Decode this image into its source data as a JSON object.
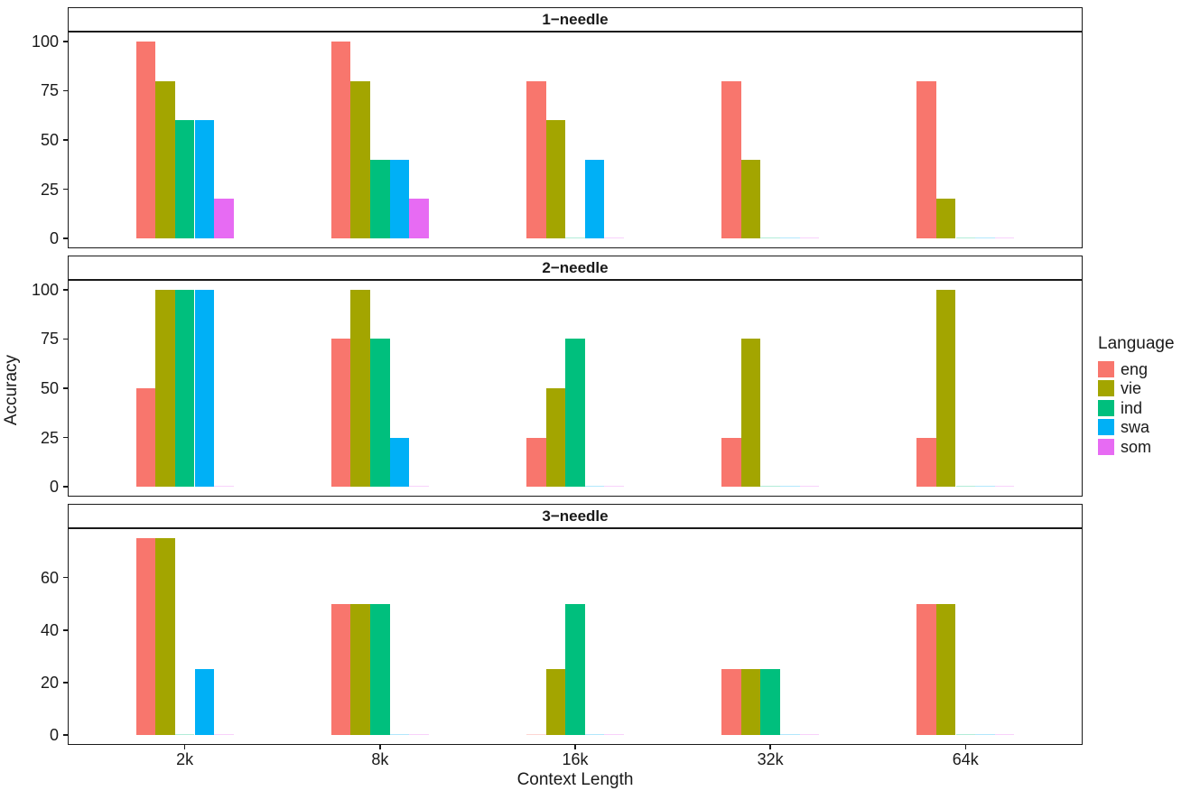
{
  "chart_data": {
    "type": "bar",
    "title": "",
    "xlabel": "Context Length",
    "ylabel": "Accuracy",
    "categories": [
      "2k",
      "8k",
      "16k",
      "32k",
      "64k"
    ],
    "grid": false,
    "legend": {
      "title": "Language",
      "position": "right",
      "entries": [
        "eng",
        "vie",
        "ind",
        "swa",
        "som"
      ]
    },
    "series_colors": {
      "eng": "#F8766D",
      "vie": "#A3A500",
      "ind": "#00BF7D",
      "swa": "#00B0F6",
      "som": "#E76BF3"
    },
    "facets": [
      {
        "label": "1−needle",
        "yticks": [
          0,
          25,
          50,
          75,
          100
        ],
        "ylim": [
          0,
          100
        ],
        "series": [
          {
            "name": "eng",
            "values": [
              100,
              100,
              80,
              80,
              80
            ]
          },
          {
            "name": "vie",
            "values": [
              80,
              80,
              60,
              40,
              20
            ]
          },
          {
            "name": "ind",
            "values": [
              60,
              40,
              0,
              0,
              0
            ]
          },
          {
            "name": "swa",
            "values": [
              60,
              40,
              40,
              0,
              0
            ]
          },
          {
            "name": "som",
            "values": [
              20,
              20,
              0,
              0,
              0
            ]
          }
        ]
      },
      {
        "label": "2−needle",
        "yticks": [
          0,
          25,
          50,
          75,
          100
        ],
        "ylim": [
          0,
          100
        ],
        "series": [
          {
            "name": "eng",
            "values": [
              50,
              75,
              25,
              25,
              25
            ]
          },
          {
            "name": "vie",
            "values": [
              100,
              100,
              50,
              75,
              100
            ]
          },
          {
            "name": "ind",
            "values": [
              100,
              75,
              75,
              0,
              0
            ]
          },
          {
            "name": "swa",
            "values": [
              100,
              25,
              0,
              0,
              0
            ]
          },
          {
            "name": "som",
            "values": [
              0,
              0,
              0,
              0,
              0
            ]
          }
        ]
      },
      {
        "label": "3−needle",
        "yticks": [
          0,
          20,
          40,
          60
        ],
        "ylim": [
          0,
          75
        ],
        "series": [
          {
            "name": "eng",
            "values": [
              75,
              50,
              0,
              25,
              50
            ]
          },
          {
            "name": "vie",
            "values": [
              75,
              50,
              25,
              25,
              50
            ]
          },
          {
            "name": "ind",
            "values": [
              0,
              50,
              50,
              25,
              0
            ]
          },
          {
            "name": "swa",
            "values": [
              25,
              0,
              0,
              0,
              0
            ]
          },
          {
            "name": "som",
            "values": [
              0,
              0,
              0,
              0,
              0
            ]
          }
        ]
      }
    ]
  }
}
